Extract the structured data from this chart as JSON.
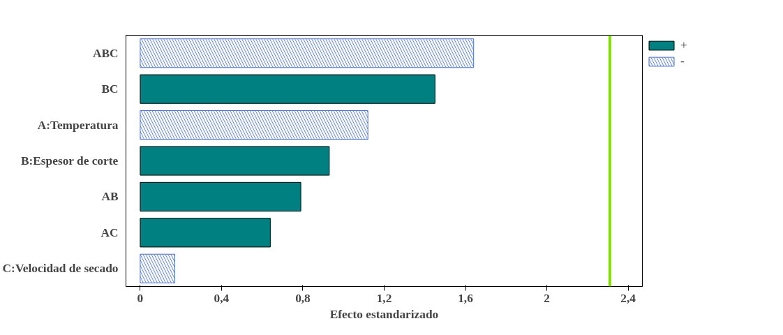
{
  "chart_data": {
    "type": "bar",
    "orientation": "horizontal",
    "categories": [
      "ABC",
      "BC",
      "A:Temperatura",
      "B:Espesor de corte",
      "AB",
      "AC",
      "C:Velocidad de secado"
    ],
    "series": [
      {
        "name": "+",
        "color": "#008080",
        "values": [
          null,
          1.45,
          null,
          0.93,
          0.79,
          0.64,
          null
        ]
      },
      {
        "name": "-",
        "color": "#4a6fd0",
        "values": [
          1.64,
          null,
          1.12,
          null,
          null,
          null,
          0.17
        ]
      }
    ],
    "xlabel": "Efecto estandarizado",
    "xlim": [
      -0.07,
      2.47
    ],
    "xticks": [
      0,
      {
        "value": 0.4,
        "label": "0,4"
      },
      {
        "value": 0.8,
        "label": "0,8"
      },
      {
        "value": 1.2,
        "label": "1,2"
      },
      {
        "value": 1.6,
        "label": "1,6"
      },
      2,
      {
        "value": 2.4,
        "label": "2,4"
      }
    ],
    "ref_lines": [
      {
        "axis": "x",
        "value": 2.31,
        "label": null,
        "color": "#80e000"
      }
    ],
    "grid": false,
    "legend": "top right"
  }
}
